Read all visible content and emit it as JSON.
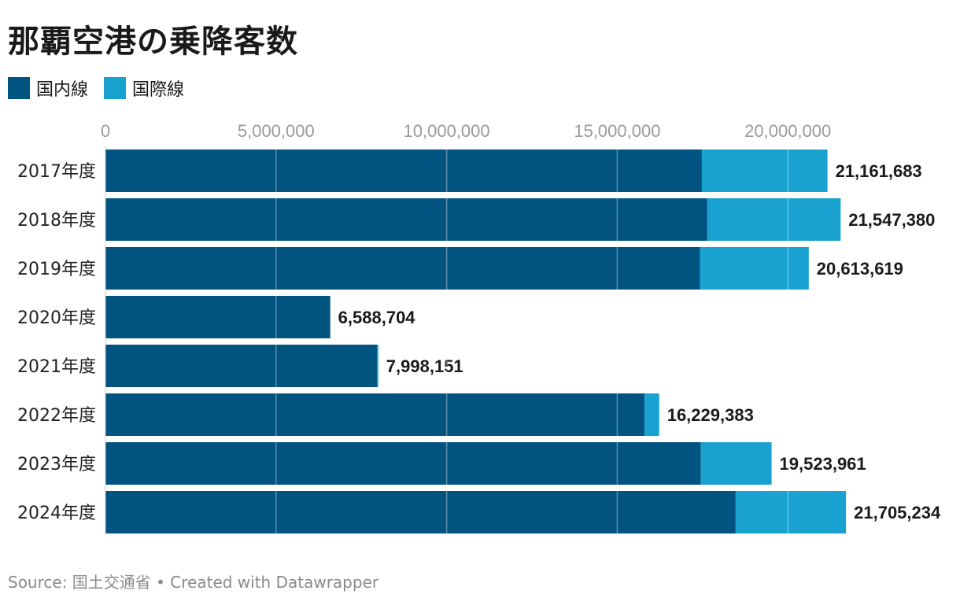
{
  "title": "那覇空港の乗降客数",
  "legend": [
    {
      "label": "国内線",
      "color": "#015380"
    },
    {
      "label": "国際線",
      "color": "#19a2d0"
    }
  ],
  "source": "Source: 国土交通省 • Created with Datawrapper",
  "chart_data": {
    "type": "bar",
    "orientation": "horizontal",
    "stacked": true,
    "title": "那覇空港の乗降客数",
    "categories": [
      "2017年度",
      "2018年度",
      "2019年度",
      "2020年度",
      "2021年度",
      "2022年度",
      "2023年度",
      "2024年度"
    ],
    "series": [
      {
        "name": "国内線",
        "color": "#015380",
        "values": [
          17480000,
          17640000,
          17430000,
          6588704,
          7960000,
          15800000,
          17450000,
          18470000
        ]
      },
      {
        "name": "国際線",
        "color": "#19a2d0",
        "values": [
          3681683,
          3907380,
          3183619,
          0,
          38151,
          429383,
          2073961,
          3235234
        ]
      }
    ],
    "totals": [
      "21,161,683",
      "21,547,380",
      "20,613,619",
      "6,588,704",
      "7,998,151",
      "16,229,383",
      "19,523,961",
      "21,705,234"
    ],
    "xlim": [
      0,
      22000000
    ],
    "xticks": [
      0,
      5000000,
      10000000,
      15000000,
      20000000
    ],
    "xtick_labels": [
      "0",
      "5,000,000",
      "10,000,000",
      "15,000,000",
      "20,000,000"
    ],
    "grid": true,
    "legend_position": "top-left"
  }
}
